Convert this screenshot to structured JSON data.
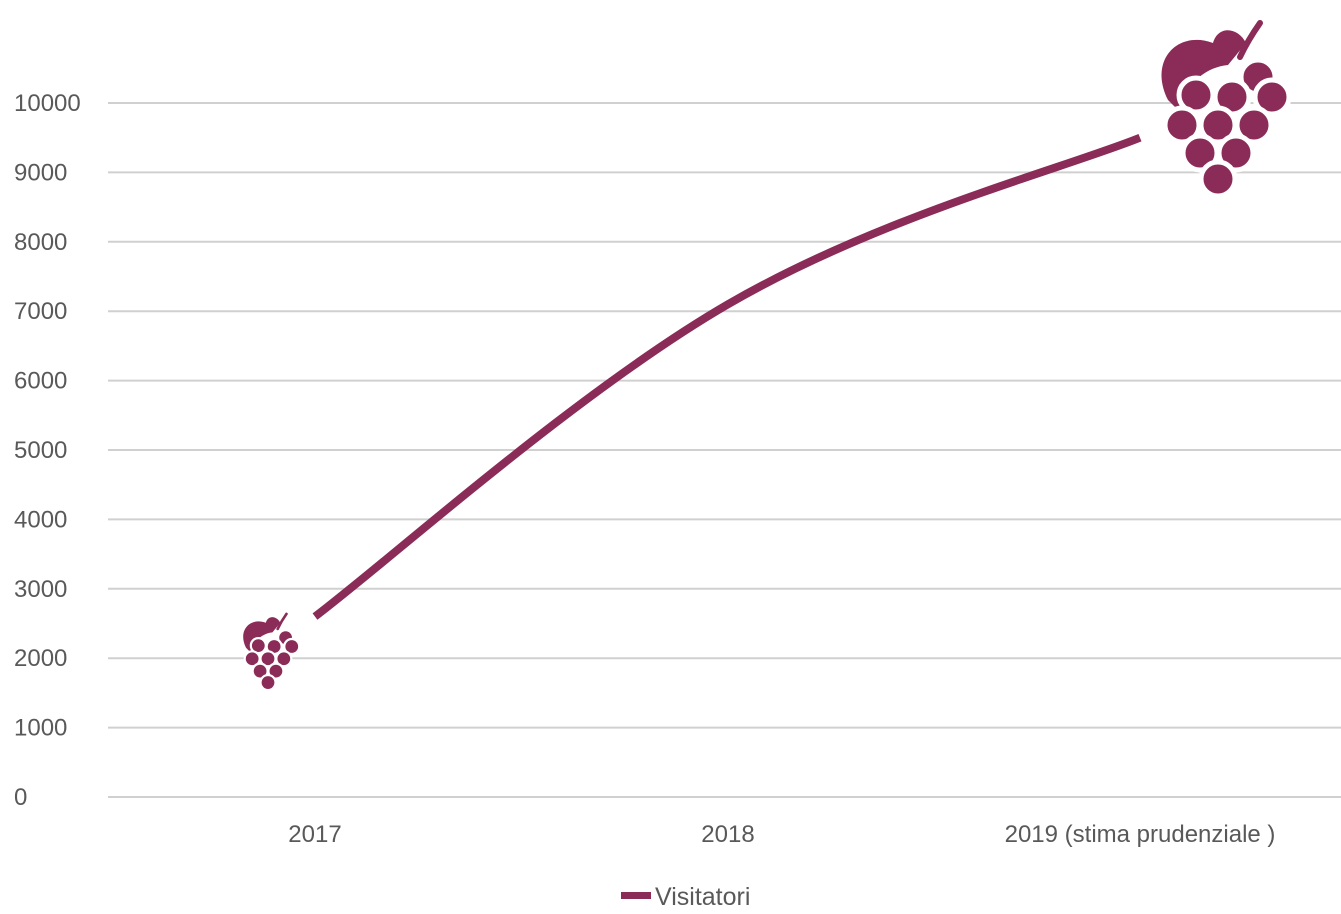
{
  "chart_data": {
    "type": "line",
    "categories": [
      "2017",
      "2018",
      "2019 (stima prudenziale )"
    ],
    "series": [
      {
        "name": "Visitatori",
        "values": [
          2600,
          7100,
          9500
        ],
        "color": "#8B2C58"
      }
    ],
    "ylim": [
      0,
      10000
    ],
    "yticks": [
      "0",
      "1000",
      "2000",
      "3000",
      "4000",
      "5000",
      "6000",
      "7000",
      "8000",
      "9000",
      "10000"
    ],
    "grid": true,
    "legend_position": "bottom",
    "decorations": {
      "icon": "grape-cluster-icon",
      "color": "#8B2C58",
      "gridline_color": "#D0D0D0"
    }
  }
}
